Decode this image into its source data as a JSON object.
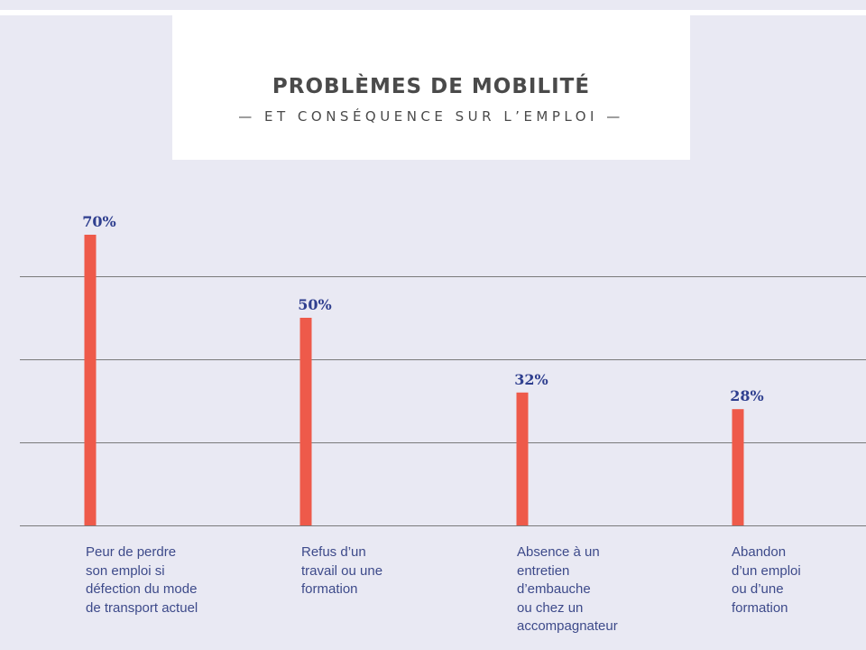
{
  "colors": {
    "background": "#e9e9f3",
    "bar": "#ee5a4a",
    "value_label": "#2f3f8f",
    "category_label": "#3d4a8a",
    "gridline": "#7a7a7a",
    "title": "#4a4a4a"
  },
  "header": {
    "title": "PROBLÈMES DE MOBILITÉ",
    "subtitle": "— ET CONSÉQUENCE SUR L’EMPLOI —"
  },
  "chart_data": {
    "type": "bar",
    "title": "PROBLÈMES DE MOBILITÉ",
    "subtitle": "— ET CONSÉQUENCE SUR L’EMPLOI —",
    "categories": [
      "Peur de perdre\nson emploi si\ndéfection du mode\nde transport actuel",
      "Refus d’un\ntravail ou une\nformation",
      "Absence à un\nentretien\nd’embauche\nou chez un\naccompagnateur",
      "Abandon\nd’un emploi\nou d’une\nformation"
    ],
    "values": [
      70,
      50,
      32,
      28
    ],
    "value_labels": [
      "70%",
      "50%",
      "32%",
      "28%"
    ],
    "unit": "%",
    "ylim": [
      0,
      80
    ],
    "gridlines": [
      0,
      20,
      40,
      60
    ],
    "grid": true,
    "legend": "none"
  }
}
